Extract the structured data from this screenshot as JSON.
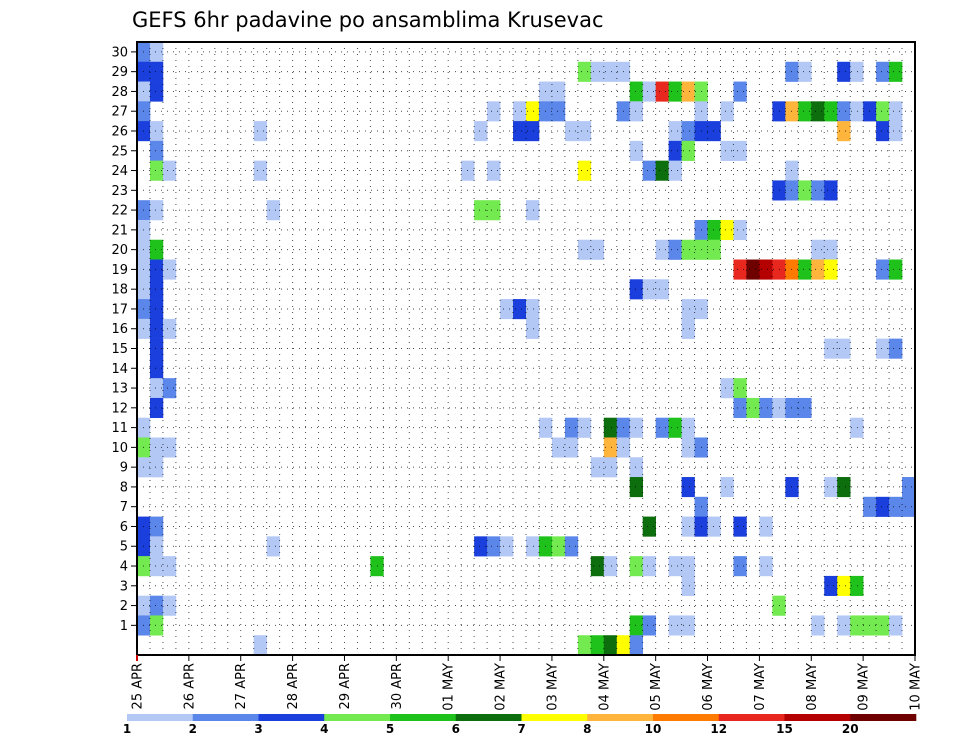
{
  "chart_data": {
    "type": "heatmap",
    "title": "GEFS 6hr padavine po ansamblima Krusevac",
    "xlabel": "",
    "ylabel": "",
    "x_tick_labels": [
      "25 APR",
      "26 APR",
      "27 APR",
      "28 APR",
      "29 APR",
      "30 APR",
      "01 MAY",
      "02 MAY",
      "03 MAY",
      "04 MAY",
      "05 MAY",
      "06 MAY",
      "07 MAY",
      "08 MAY",
      "09 MAY",
      "10 MAY"
    ],
    "y_tick_labels": [
      "1",
      "2",
      "3",
      "4",
      "5",
      "6",
      "7",
      "8",
      "9",
      "10",
      "11",
      "12",
      "13",
      "14",
      "15",
      "16",
      "17",
      "18",
      "19",
      "20",
      "21",
      "22",
      "23",
      "24",
      "25",
      "26",
      "27",
      "28",
      "29",
      "30"
    ],
    "time_steps": 60,
    "time_step_hours": 6,
    "grid": true,
    "legend_placement": "bottom",
    "legend": {
      "labels": [
        "1",
        "2",
        "3",
        "4",
        "5",
        "6",
        "7",
        "8",
        "10",
        "12",
        "15",
        "20"
      ],
      "colors": [
        "#b3c8f5",
        "#5b86ea",
        "#1a3fdc",
        "#72ea50",
        "#1fc21a",
        "#0d6e0d",
        "#ffff00",
        "#ffb43c",
        "#ff7b00",
        "#e8281e",
        "#b40000",
        "#6e0000"
      ]
    },
    "cells": [
      [
        30,
        0,
        2
      ],
      [
        30,
        1,
        1
      ],
      [
        29,
        0,
        3
      ],
      [
        29,
        1,
        3
      ],
      [
        29,
        34,
        4
      ],
      [
        29,
        35,
        1
      ],
      [
        29,
        36,
        1
      ],
      [
        29,
        37,
        1
      ],
      [
        29,
        50,
        2
      ],
      [
        29,
        51,
        1
      ],
      [
        29,
        54,
        3
      ],
      [
        29,
        55,
        1
      ],
      [
        29,
        57,
        2
      ],
      [
        29,
        58,
        5
      ],
      [
        28,
        0,
        1
      ],
      [
        28,
        1,
        3
      ],
      [
        28,
        31,
        1
      ],
      [
        28,
        32,
        1
      ],
      [
        28,
        38,
        5
      ],
      [
        28,
        39,
        1
      ],
      [
        28,
        40,
        10
      ],
      [
        28,
        41,
        5
      ],
      [
        28,
        42,
        8
      ],
      [
        28,
        43,
        4
      ],
      [
        28,
        46,
        2
      ],
      [
        27,
        0,
        2
      ],
      [
        27,
        27,
        1
      ],
      [
        27,
        29,
        1
      ],
      [
        27,
        30,
        7
      ],
      [
        27,
        31,
        2
      ],
      [
        27,
        32,
        2
      ],
      [
        27,
        37,
        2
      ],
      [
        27,
        38,
        1
      ],
      [
        27,
        43,
        1
      ],
      [
        27,
        45,
        1
      ],
      [
        27,
        49,
        3
      ],
      [
        27,
        50,
        8
      ],
      [
        27,
        51,
        5
      ],
      [
        27,
        52,
        6
      ],
      [
        27,
        53,
        5
      ],
      [
        27,
        54,
        2
      ],
      [
        27,
        55,
        1
      ],
      [
        27,
        56,
        3
      ],
      [
        27,
        57,
        4
      ],
      [
        27,
        58,
        1
      ],
      [
        26,
        0,
        3
      ],
      [
        26,
        1,
        1
      ],
      [
        26,
        9,
        1
      ],
      [
        26,
        26,
        1
      ],
      [
        26,
        29,
        3
      ],
      [
        26,
        30,
        3
      ],
      [
        26,
        33,
        1
      ],
      [
        26,
        34,
        1
      ],
      [
        26,
        41,
        1
      ],
      [
        26,
        42,
        2
      ],
      [
        26,
        43,
        3
      ],
      [
        26,
        44,
        3
      ],
      [
        26,
        54,
        8
      ],
      [
        26,
        57,
        3
      ],
      [
        26,
        58,
        1
      ],
      [
        25,
        1,
        2
      ],
      [
        25,
        38,
        1
      ],
      [
        25,
        41,
        3
      ],
      [
        25,
        42,
        4
      ],
      [
        25,
        45,
        1
      ],
      [
        25,
        46,
        1
      ],
      [
        24,
        1,
        4
      ],
      [
        24,
        2,
        1
      ],
      [
        24,
        9,
        1
      ],
      [
        24,
        25,
        1
      ],
      [
        24,
        27,
        1
      ],
      [
        24,
        34,
        7
      ],
      [
        24,
        39,
        2
      ],
      [
        24,
        40,
        6
      ],
      [
        24,
        41,
        1
      ],
      [
        24,
        50,
        1
      ],
      [
        23,
        49,
        3
      ],
      [
        23,
        50,
        2
      ],
      [
        23,
        51,
        4
      ],
      [
        23,
        52,
        2
      ],
      [
        23,
        53,
        3
      ],
      [
        22,
        0,
        2
      ],
      [
        22,
        1,
        1
      ],
      [
        22,
        10,
        1
      ],
      [
        22,
        26,
        4
      ],
      [
        22,
        27,
        4
      ],
      [
        22,
        30,
        1
      ],
      [
        21,
        0,
        1
      ],
      [
        21,
        43,
        2
      ],
      [
        21,
        44,
        5
      ],
      [
        21,
        45,
        7
      ],
      [
        21,
        46,
        1
      ],
      [
        20,
        0,
        1
      ],
      [
        20,
        1,
        5
      ],
      [
        20,
        34,
        1
      ],
      [
        20,
        35,
        1
      ],
      [
        20,
        40,
        1
      ],
      [
        20,
        41,
        2
      ],
      [
        20,
        42,
        4
      ],
      [
        20,
        43,
        4
      ],
      [
        20,
        44,
        4
      ],
      [
        20,
        52,
        1
      ],
      [
        20,
        53,
        1
      ],
      [
        19,
        0,
        1
      ],
      [
        19,
        1,
        3
      ],
      [
        19,
        2,
        1
      ],
      [
        19,
        46,
        10
      ],
      [
        19,
        47,
        12
      ],
      [
        19,
        48,
        11
      ],
      [
        19,
        49,
        10
      ],
      [
        19,
        50,
        9
      ],
      [
        19,
        51,
        5
      ],
      [
        19,
        52,
        8
      ],
      [
        19,
        53,
        7
      ],
      [
        19,
        57,
        2
      ],
      [
        19,
        58,
        5
      ],
      [
        18,
        0,
        1
      ],
      [
        18,
        1,
        3
      ],
      [
        18,
        38,
        3
      ],
      [
        18,
        39,
        1
      ],
      [
        18,
        40,
        1
      ],
      [
        17,
        0,
        2
      ],
      [
        17,
        1,
        3
      ],
      [
        17,
        28,
        1
      ],
      [
        17,
        29,
        3
      ],
      [
        17,
        30,
        1
      ],
      [
        17,
        42,
        1
      ],
      [
        17,
        43,
        1
      ],
      [
        16,
        0,
        1
      ],
      [
        16,
        1,
        3
      ],
      [
        16,
        2,
        1
      ],
      [
        16,
        30,
        1
      ],
      [
        16,
        42,
        1
      ],
      [
        15,
        1,
        3
      ],
      [
        15,
        53,
        1
      ],
      [
        15,
        54,
        1
      ],
      [
        15,
        57,
        1
      ],
      [
        15,
        58,
        2
      ],
      [
        14,
        1,
        3
      ],
      [
        13,
        1,
        1
      ],
      [
        13,
        2,
        2
      ],
      [
        13,
        45,
        1
      ],
      [
        13,
        46,
        4
      ],
      [
        12,
        1,
        3
      ],
      [
        12,
        46,
        2
      ],
      [
        12,
        47,
        4
      ],
      [
        12,
        48,
        2
      ],
      [
        12,
        49,
        1
      ],
      [
        12,
        50,
        2
      ],
      [
        12,
        51,
        2
      ],
      [
        11,
        0,
        1
      ],
      [
        11,
        31,
        1
      ],
      [
        11,
        33,
        2
      ],
      [
        11,
        34,
        1
      ],
      [
        11,
        36,
        6
      ],
      [
        11,
        37,
        2
      ],
      [
        11,
        38,
        1
      ],
      [
        11,
        40,
        2
      ],
      [
        11,
        41,
        5
      ],
      [
        11,
        42,
        1
      ],
      [
        11,
        55,
        1
      ],
      [
        10,
        0,
        4
      ],
      [
        10,
        1,
        1
      ],
      [
        10,
        2,
        1
      ],
      [
        10,
        32,
        1
      ],
      [
        10,
        33,
        1
      ],
      [
        10,
        36,
        8
      ],
      [
        10,
        37,
        1
      ],
      [
        10,
        42,
        1
      ],
      [
        10,
        43,
        2
      ],
      [
        9,
        0,
        1
      ],
      [
        9,
        1,
        1
      ],
      [
        9,
        35,
        1
      ],
      [
        9,
        36,
        1
      ],
      [
        9,
        38,
        1
      ],
      [
        8,
        38,
        6
      ],
      [
        8,
        42,
        3
      ],
      [
        8,
        45,
        1
      ],
      [
        8,
        50,
        3
      ],
      [
        8,
        53,
        1
      ],
      [
        8,
        54,
        6
      ],
      [
        8,
        59,
        2
      ],
      [
        7,
        43,
        2
      ],
      [
        7,
        56,
        2
      ],
      [
        7,
        57,
        3
      ],
      [
        7,
        58,
        2
      ],
      [
        7,
        59,
        2
      ],
      [
        6,
        0,
        3
      ],
      [
        6,
        1,
        2
      ],
      [
        6,
        39,
        6
      ],
      [
        6,
        42,
        1
      ],
      [
        6,
        43,
        3
      ],
      [
        6,
        44,
        1
      ],
      [
        6,
        46,
        3
      ],
      [
        6,
        48,
        1
      ],
      [
        5,
        0,
        3
      ],
      [
        5,
        1,
        1
      ],
      [
        5,
        10,
        1
      ],
      [
        5,
        26,
        3
      ],
      [
        5,
        27,
        2
      ],
      [
        5,
        28,
        1
      ],
      [
        5,
        30,
        1
      ],
      [
        5,
        31,
        5
      ],
      [
        5,
        32,
        4
      ],
      [
        5,
        33,
        2
      ],
      [
        4,
        0,
        4
      ],
      [
        4,
        1,
        1
      ],
      [
        4,
        2,
        1
      ],
      [
        4,
        18,
        5
      ],
      [
        4,
        35,
        6
      ],
      [
        4,
        36,
        1
      ],
      [
        4,
        38,
        4
      ],
      [
        4,
        39,
        1
      ],
      [
        4,
        41,
        1
      ],
      [
        4,
        42,
        1
      ],
      [
        4,
        46,
        2
      ],
      [
        4,
        48,
        1
      ],
      [
        3,
        42,
        1
      ],
      [
        3,
        53,
        3
      ],
      [
        3,
        54,
        7
      ],
      [
        3,
        55,
        5
      ],
      [
        2,
        0,
        1
      ],
      [
        2,
        1,
        2
      ],
      [
        2,
        2,
        1
      ],
      [
        2,
        49,
        4
      ],
      [
        1,
        0,
        2
      ],
      [
        1,
        1,
        4
      ],
      [
        1,
        38,
        5
      ],
      [
        1,
        39,
        2
      ],
      [
        1,
        41,
        1
      ],
      [
        1,
        42,
        1
      ],
      [
        1,
        52,
        1
      ],
      [
        1,
        54,
        1
      ],
      [
        1,
        55,
        4
      ],
      [
        1,
        56,
        4
      ],
      [
        1,
        57,
        4
      ],
      [
        1,
        58,
        1
      ],
      [
        0,
        9,
        1
      ],
      [
        0,
        34,
        4
      ],
      [
        0,
        35,
        5
      ],
      [
        0,
        36,
        6
      ],
      [
        0,
        37,
        7
      ],
      [
        0,
        38,
        2
      ]
    ]
  }
}
